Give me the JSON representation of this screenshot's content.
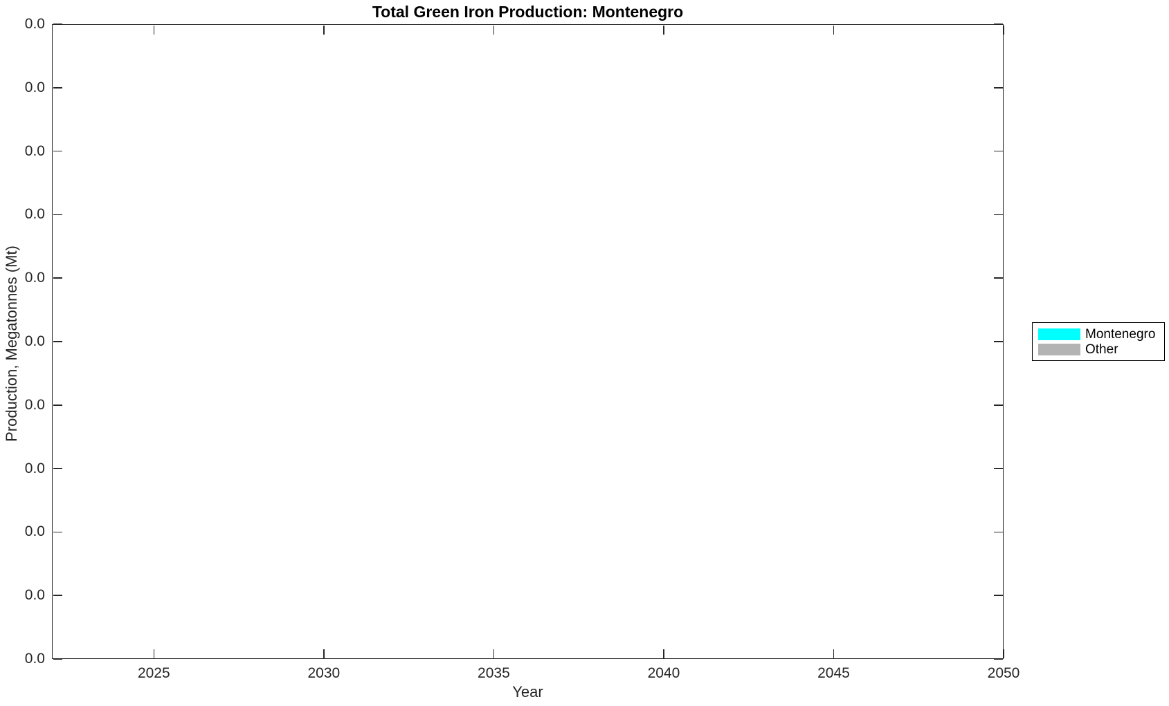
{
  "figure": {
    "background": "#FFFFFF"
  },
  "chart_data": {
    "type": "area",
    "title": "Total Green Iron Production: Montenegro",
    "xlabel": "Year",
    "ylabel": "Production, Megatonnes (Mt)",
    "xlim": [
      2022,
      2050
    ],
    "x_ticks": [
      2025,
      2030,
      2035,
      2040,
      2045,
      2050
    ],
    "y_tick_labels": [
      "0.0",
      "0.0",
      "0.0",
      "0.0",
      "0.0",
      "0.0",
      "0.0",
      "0.0",
      "0.0",
      "0.0",
      "0.0"
    ],
    "grid": false,
    "legend_position": "right-outside",
    "x": [
      2022,
      2023,
      2024,
      2025,
      2026,
      2027,
      2028,
      2029,
      2030,
      2031,
      2032,
      2033,
      2034,
      2035,
      2036,
      2037,
      2038,
      2039,
      2040,
      2041,
      2042,
      2043,
      2044,
      2045,
      2046,
      2047,
      2048,
      2049,
      2050
    ],
    "series": [
      {
        "name": "Montenegro",
        "color": "#00FFFF",
        "values": [
          0,
          0,
          0,
          0,
          0,
          0,
          0,
          0,
          0,
          0,
          0,
          0,
          0,
          0,
          0,
          0,
          0,
          0,
          0,
          0,
          0,
          0,
          0,
          0,
          0,
          0,
          0,
          0,
          0
        ]
      },
      {
        "name": "Other",
        "color": "#B3B3B3",
        "values": [
          0,
          0,
          0,
          0,
          0,
          0,
          0,
          0,
          0,
          0,
          0,
          0,
          0,
          0,
          0,
          0,
          0,
          0,
          0,
          0,
          0,
          0,
          0,
          0,
          0,
          0,
          0,
          0,
          0
        ]
      }
    ],
    "colors": {
      "axis": "#262626",
      "title": "#000000",
      "tick_label": "#262626",
      "legend_border": "#000000",
      "background": "#FFFFFF"
    }
  }
}
